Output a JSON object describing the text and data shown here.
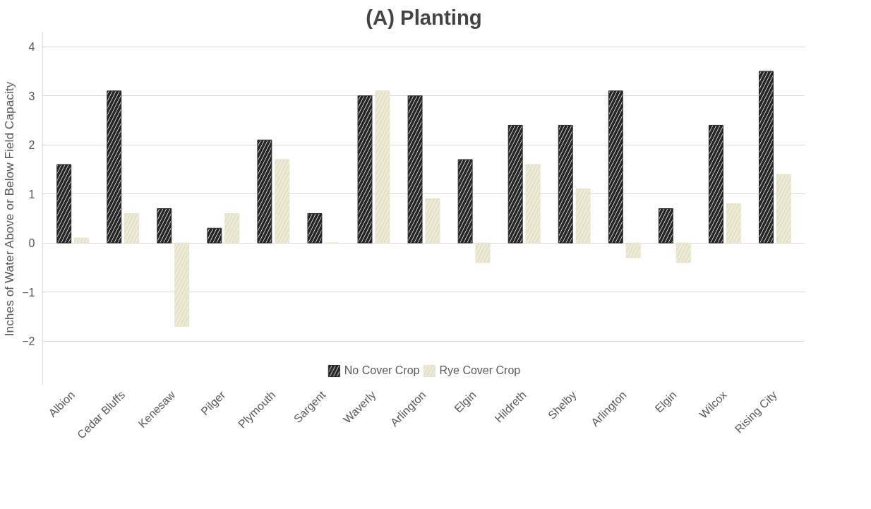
{
  "chart_data": {
    "type": "bar",
    "title": "(A) Planting",
    "ylabel": "Inches of Water Above or Below Field Capacity",
    "categories": [
      "Albion",
      "Cedar Bluffs",
      "Kenesaw",
      "Pilger",
      "Plymouth",
      "Sargent",
      "Waverly",
      "Arlington",
      "Elgin",
      "Hildreth",
      "Shelby",
      "Arlington",
      "Elgin",
      "Wilcox",
      "Rising City"
    ],
    "series": [
      {
        "name": "No Cover Crop",
        "color": "#262626",
        "values": [
          1.6,
          3.1,
          0.7,
          0.3,
          2.1,
          0.6,
          3.0,
          3.0,
          1.7,
          2.4,
          2.4,
          3.1,
          0.7,
          2.4,
          3.5
        ]
      },
      {
        "name": "Rye Cover Crop",
        "color": "#e6e2c8",
        "values": [
          0.1,
          0.6,
          -1.7,
          0.6,
          1.7,
          0.0,
          3.1,
          0.9,
          -0.4,
          1.6,
          1.1,
          -0.3,
          -0.4,
          0.8,
          1.4
        ]
      }
    ],
    "ylim": [
      -2.9,
      4.3
    ],
    "yticks": [
      -2,
      -1,
      0,
      1,
      2,
      3,
      4
    ],
    "grid": "y",
    "legend": "bottom"
  }
}
